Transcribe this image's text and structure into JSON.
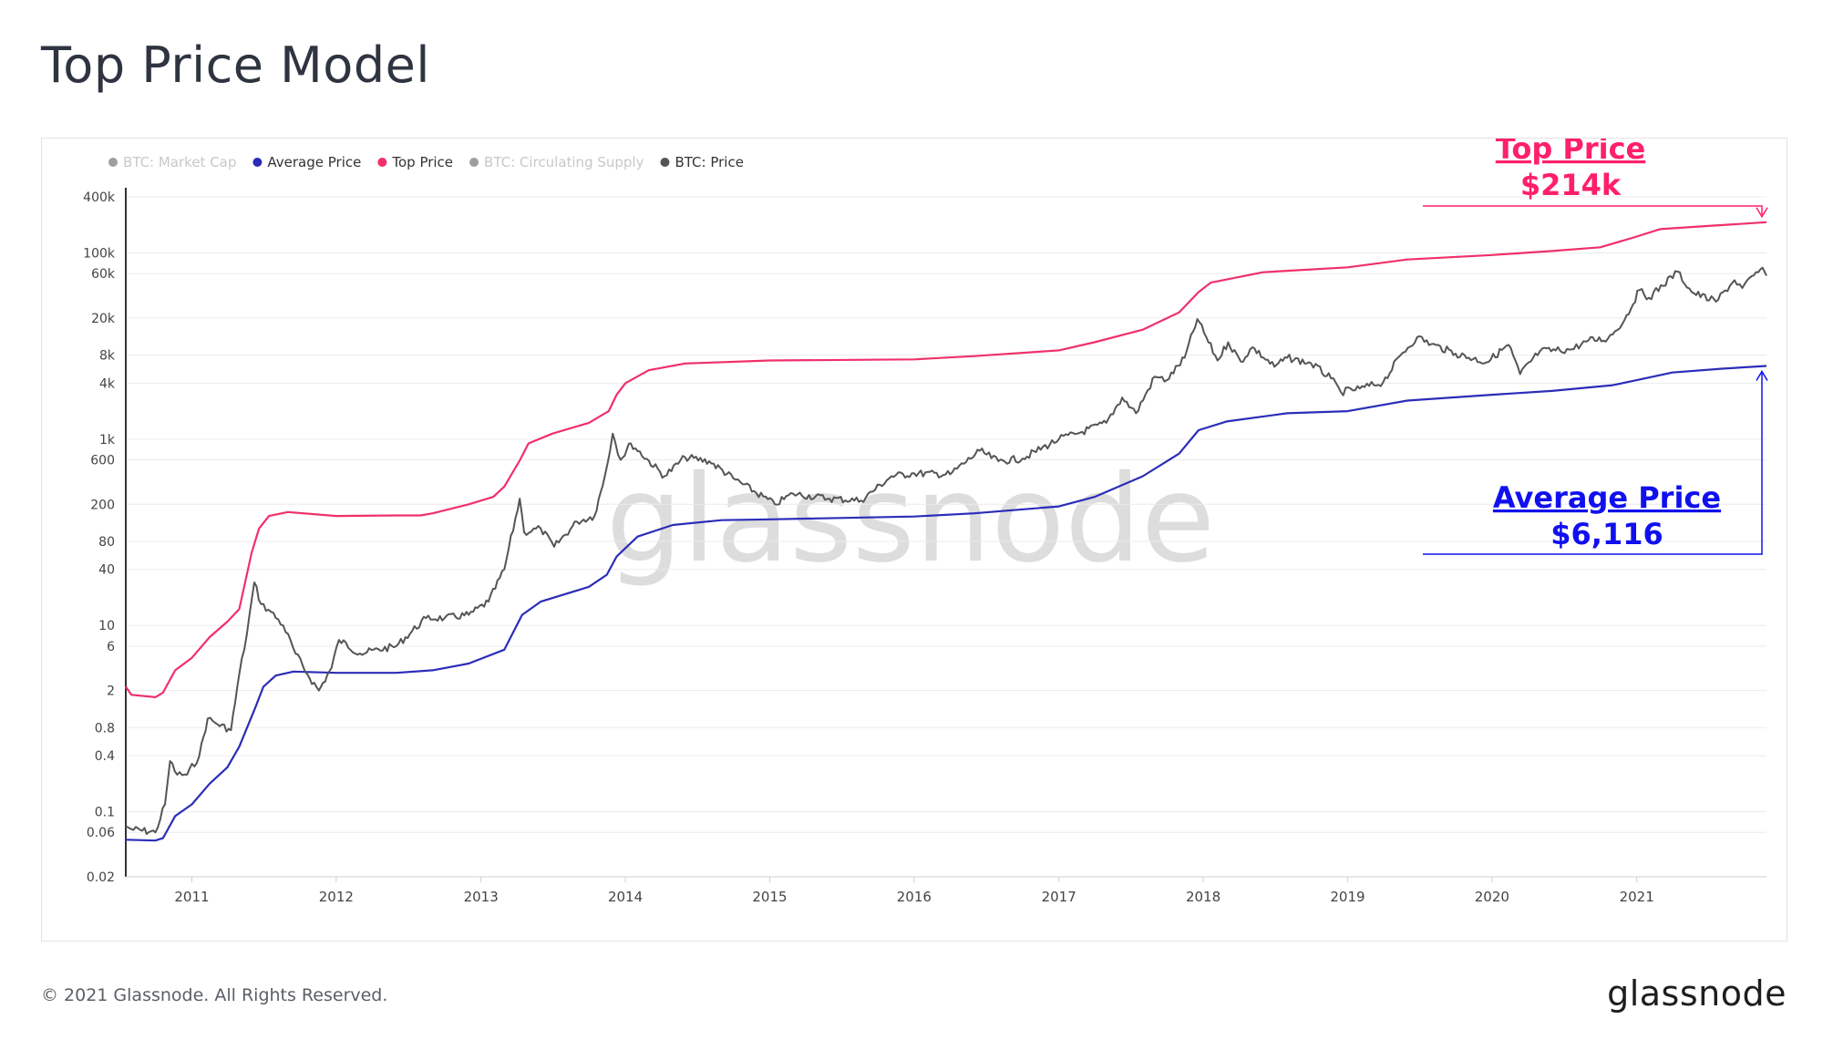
{
  "title": "Top Price Model",
  "footer": {
    "copyright": "© 2021 Glassnode. All Rights Reserved.",
    "logo": "glassnode"
  },
  "watermark": "glassnode",
  "legend": [
    {
      "label": "BTC: Market Cap",
      "color": "#9e9e9e",
      "active": false
    },
    {
      "label": "Average Price",
      "color": "#2b2db8",
      "active": true
    },
    {
      "label": "Top Price",
      "color": "#f0306a",
      "active": true
    },
    {
      "label": "BTC: Circulating Supply",
      "color": "#f5a623",
      "active": false
    },
    {
      "label": "BTC: Price",
      "color": "#555555",
      "active": true
    }
  ],
  "annotations": {
    "top_label": "Top Price",
    "top_value": "$214k",
    "avg_label": "Average Price",
    "avg_value": "$6,116",
    "top_color": "#ff1f6b",
    "avg_color": "#1010ee"
  },
  "chart_data": {
    "type": "line",
    "y_scale": "log",
    "ylim": [
      0.02,
      400000
    ],
    "xlim": [
      "2010-07-18",
      "2021-11-25"
    ],
    "y_ticks": [
      {
        "value": 400000,
        "label": "400k"
      },
      {
        "value": 100000,
        "label": "100k"
      },
      {
        "value": 60000,
        "label": "60k"
      },
      {
        "value": 20000,
        "label": "20k"
      },
      {
        "value": 8000,
        "label": "8k"
      },
      {
        "value": 4000,
        "label": "4k"
      },
      {
        "value": 1000,
        "label": "1k"
      },
      {
        "value": 600,
        "label": "600"
      },
      {
        "value": 200,
        "label": "200"
      },
      {
        "value": 80,
        "label": "80"
      },
      {
        "value": 40,
        "label": "40"
      },
      {
        "value": 10,
        "label": "10"
      },
      {
        "value": 6,
        "label": "6"
      },
      {
        "value": 2,
        "label": "2"
      },
      {
        "value": 0.8,
        "label": "0.8"
      },
      {
        "value": 0.4,
        "label": "0.4"
      },
      {
        "value": 0.1,
        "label": "0.1"
      },
      {
        "value": 0.06,
        "label": "0.06"
      },
      {
        "value": 0.02,
        "label": "0.02"
      }
    ],
    "x_ticks": [
      {
        "value": "2011-01-01",
        "label": "2011"
      },
      {
        "value": "2012-01-01",
        "label": "2012"
      },
      {
        "value": "2013-01-01",
        "label": "2013"
      },
      {
        "value": "2014-01-01",
        "label": "2014"
      },
      {
        "value": "2015-01-01",
        "label": "2015"
      },
      {
        "value": "2016-01-01",
        "label": "2016"
      },
      {
        "value": "2017-01-01",
        "label": "2017"
      },
      {
        "value": "2018-01-01",
        "label": "2018"
      },
      {
        "value": "2019-01-01",
        "label": "2019"
      },
      {
        "value": "2020-01-01",
        "label": "2020"
      },
      {
        "value": "2021-01-01",
        "label": "2021"
      }
    ],
    "series": [
      {
        "name": "Top Price",
        "color": "#f0306a",
        "points": [
          [
            "2010-07-18",
            2.2
          ],
          [
            "2010-08-01",
            1.8
          ],
          [
            "2010-10-01",
            1.7
          ],
          [
            "2010-10-20",
            1.9
          ],
          [
            "2010-11-20",
            3.3
          ],
          [
            "2011-01-01",
            4.5
          ],
          [
            "2011-02-15",
            7.5
          ],
          [
            "2011-04-01",
            11
          ],
          [
            "2011-05-01",
            15
          ],
          [
            "2011-06-01",
            60
          ],
          [
            "2011-06-20",
            110
          ],
          [
            "2011-07-15",
            150
          ],
          [
            "2011-09-01",
            165
          ],
          [
            "2012-01-01",
            150
          ],
          [
            "2012-06-01",
            152
          ],
          [
            "2012-08-01",
            152
          ],
          [
            "2012-09-01",
            160
          ],
          [
            "2012-12-01",
            200
          ],
          [
            "2013-02-01",
            240
          ],
          [
            "2013-03-01",
            310
          ],
          [
            "2013-04-10",
            600
          ],
          [
            "2013-05-01",
            900
          ],
          [
            "2013-07-01",
            1150
          ],
          [
            "2013-10-01",
            1500
          ],
          [
            "2013-11-20",
            2000
          ],
          [
            "2013-12-10",
            3000
          ],
          [
            "2014-01-01",
            4000
          ],
          [
            "2014-03-01",
            5500
          ],
          [
            "2014-06-01",
            6500
          ],
          [
            "2015-01-01",
            7000
          ],
          [
            "2016-01-01",
            7200
          ],
          [
            "2016-06-01",
            7800
          ],
          [
            "2017-01-01",
            9000
          ],
          [
            "2017-04-01",
            11000
          ],
          [
            "2017-08-01",
            15000
          ],
          [
            "2017-11-01",
            23000
          ],
          [
            "2017-12-20",
            38000
          ],
          [
            "2018-01-20",
            48000
          ],
          [
            "2018-06-01",
            62000
          ],
          [
            "2019-01-01",
            70000
          ],
          [
            "2019-06-01",
            85000
          ],
          [
            "2020-01-01",
            95000
          ],
          [
            "2020-06-01",
            105000
          ],
          [
            "2020-10-01",
            115000
          ],
          [
            "2021-01-01",
            150000
          ],
          [
            "2021-03-01",
            180000
          ],
          [
            "2021-07-01",
            195000
          ],
          [
            "2021-11-25",
            214000
          ]
        ]
      },
      {
        "name": "Average Price",
        "color": "#2b2db8",
        "points": [
          [
            "2010-07-18",
            0.05
          ],
          [
            "2010-10-01",
            0.049
          ],
          [
            "2010-10-20",
            0.052
          ],
          [
            "2010-11-20",
            0.09
          ],
          [
            "2011-01-01",
            0.12
          ],
          [
            "2011-02-15",
            0.2
          ],
          [
            "2011-04-01",
            0.3
          ],
          [
            "2011-05-01",
            0.5
          ],
          [
            "2011-06-10",
            1.3
          ],
          [
            "2011-07-01",
            2.2
          ],
          [
            "2011-08-01",
            2.9
          ],
          [
            "2011-09-15",
            3.2
          ],
          [
            "2012-01-01",
            3.1
          ],
          [
            "2012-06-01",
            3.1
          ],
          [
            "2012-09-01",
            3.3
          ],
          [
            "2012-12-01",
            3.9
          ],
          [
            "2013-03-01",
            5.5
          ],
          [
            "2013-04-15",
            13
          ],
          [
            "2013-06-01",
            18
          ],
          [
            "2013-10-01",
            26
          ],
          [
            "2013-11-15",
            35
          ],
          [
            "2013-12-10",
            55
          ],
          [
            "2014-02-01",
            90
          ],
          [
            "2014-05-01",
            120
          ],
          [
            "2014-09-01",
            135
          ],
          [
            "2015-01-01",
            138
          ],
          [
            "2016-01-01",
            148
          ],
          [
            "2016-06-01",
            160
          ],
          [
            "2017-01-01",
            190
          ],
          [
            "2017-04-01",
            240
          ],
          [
            "2017-08-01",
            400
          ],
          [
            "2017-11-01",
            700
          ],
          [
            "2017-12-20",
            1250
          ],
          [
            "2018-03-01",
            1550
          ],
          [
            "2018-08-01",
            1900
          ],
          [
            "2019-01-01",
            2000
          ],
          [
            "2019-06-01",
            2600
          ],
          [
            "2020-01-01",
            3000
          ],
          [
            "2020-06-01",
            3300
          ],
          [
            "2020-11-01",
            3800
          ],
          [
            "2021-01-01",
            4300
          ],
          [
            "2021-04-01",
            5200
          ],
          [
            "2021-08-01",
            5700
          ],
          [
            "2021-11-25",
            6116
          ]
        ]
      },
      {
        "name": "BTC: Price",
        "color": "#555555",
        "points": [
          [
            "2010-07-18",
            0.07
          ],
          [
            "2010-08-01",
            0.065
          ],
          [
            "2010-10-01",
            0.06
          ],
          [
            "2010-10-25",
            0.12
          ],
          [
            "2010-11-07",
            0.35
          ],
          [
            "2010-11-25",
            0.25
          ],
          [
            "2010-12-20",
            0.25
          ],
          [
            "2011-01-20",
            0.4
          ],
          [
            "2011-02-10",
            1.0
          ],
          [
            "2011-03-01",
            0.9
          ],
          [
            "2011-04-10",
            0.75
          ],
          [
            "2011-05-01",
            3.0
          ],
          [
            "2011-05-20",
            8
          ],
          [
            "2011-06-08",
            29
          ],
          [
            "2011-06-25",
            17
          ],
          [
            "2011-07-20",
            14
          ],
          [
            "2011-08-20",
            10
          ],
          [
            "2011-09-20",
            5
          ],
          [
            "2011-10-20",
            3
          ],
          [
            "2011-11-18",
            2.0
          ],
          [
            "2011-12-20",
            3.5
          ],
          [
            "2012-01-08",
            7
          ],
          [
            "2012-03-01",
            5
          ],
          [
            "2012-06-01",
            6
          ],
          [
            "2012-08-15",
            12
          ],
          [
            "2012-10-01",
            12
          ],
          [
            "2012-12-01",
            13
          ],
          [
            "2013-01-20",
            18
          ],
          [
            "2013-03-01",
            40
          ],
          [
            "2013-04-09",
            230
          ],
          [
            "2013-04-20",
            100
          ],
          [
            "2013-06-01",
            110
          ],
          [
            "2013-07-05",
            70
          ],
          [
            "2013-09-01",
            130
          ],
          [
            "2013-10-15",
            150
          ],
          [
            "2013-11-10",
            400
          ],
          [
            "2013-11-30",
            1150
          ],
          [
            "2013-12-20",
            600
          ],
          [
            "2014-01-15",
            900
          ],
          [
            "2014-04-10",
            400
          ],
          [
            "2014-06-01",
            640
          ],
          [
            "2014-08-01",
            580
          ],
          [
            "2014-10-01",
            380
          ],
          [
            "2015-01-14",
            200
          ],
          [
            "2015-03-01",
            260
          ],
          [
            "2015-06-01",
            230
          ],
          [
            "2015-08-20",
            220
          ],
          [
            "2015-11-05",
            400
          ],
          [
            "2016-01-01",
            430
          ],
          [
            "2016-04-01",
            420
          ],
          [
            "2016-06-15",
            750
          ],
          [
            "2016-08-01",
            580
          ],
          [
            "2016-10-01",
            620
          ],
          [
            "2017-01-01",
            1000
          ],
          [
            "2017-03-01",
            1200
          ],
          [
            "2017-05-01",
            1500
          ],
          [
            "2017-06-10",
            2800
          ],
          [
            "2017-07-15",
            1900
          ],
          [
            "2017-09-01",
            4700
          ],
          [
            "2017-10-01",
            4300
          ],
          [
            "2017-11-15",
            7500
          ],
          [
            "2017-12-17",
            19500
          ],
          [
            "2018-02-06",
            7000
          ],
          [
            "2018-03-05",
            11000
          ],
          [
            "2018-04-06",
            6800
          ],
          [
            "2018-05-05",
            9700
          ],
          [
            "2018-06-30",
            6000
          ],
          [
            "2018-08-01",
            7500
          ],
          [
            "2018-10-01",
            6500
          ],
          [
            "2018-11-20",
            4500
          ],
          [
            "2018-12-15",
            3200
          ],
          [
            "2019-02-01",
            3500
          ],
          [
            "2019-04-01",
            4100
          ],
          [
            "2019-05-15",
            8000
          ],
          [
            "2019-06-26",
            12500
          ],
          [
            "2019-08-01",
            10500
          ],
          [
            "2019-10-01",
            8300
          ],
          [
            "2019-12-18",
            6700
          ],
          [
            "2020-02-12",
            10300
          ],
          [
            "2020-03-12",
            5000
          ],
          [
            "2020-05-01",
            8800
          ],
          [
            "2020-07-20",
            9200
          ],
          [
            "2020-09-01",
            11500
          ],
          [
            "2020-10-20",
            12000
          ],
          [
            "2020-12-01",
            19000
          ],
          [
            "2021-01-08",
            40000
          ],
          [
            "2021-02-01",
            33000
          ],
          [
            "2021-04-14",
            63000
          ],
          [
            "2021-05-20",
            38000
          ],
          [
            "2021-07-20",
            30000
          ],
          [
            "2021-09-05",
            51000
          ],
          [
            "2021-09-25",
            42000
          ],
          [
            "2021-11-10",
            67000
          ],
          [
            "2021-11-25",
            57000
          ]
        ]
      }
    ]
  }
}
